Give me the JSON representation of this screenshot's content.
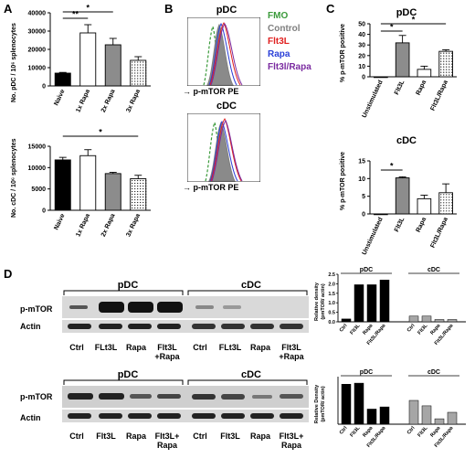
{
  "panels": {
    "A": "A",
    "B": "B",
    "C": "C",
    "D": "D"
  },
  "colors": {
    "fmo": "#3a9a3a",
    "control": "#7f7f7f",
    "flt3l": "#e0201f",
    "rapa": "#2a3fd8",
    "flt3l_rapa": "#7a2aa0"
  },
  "panel_a": {
    "top": {
      "ylabel": "No. pDC / 10⁶ splenocytes",
      "yticks": [
        "0",
        "10000",
        "20000",
        "30000",
        "40000"
      ],
      "categories": [
        "Naive",
        "1x Rapa",
        "2x Rapa",
        "3x Rapa"
      ],
      "sig1": "**",
      "sig2": "*"
    },
    "bottom": {
      "ylabel": "No. cDC / 10⁶ splenocytes",
      "yticks": [
        "0",
        "5000",
        "10000",
        "15000"
      ],
      "categories": [
        "Naive",
        "1x Rapa",
        "2x Rapa",
        "3x Rapa"
      ],
      "sig1": "*"
    }
  },
  "panel_b": {
    "top_title": "pDC",
    "bottom_title": "cDC",
    "xlabel": "p-mTOR PE",
    "legend": [
      "FMO",
      "Control",
      "Flt3L",
      "Rapa",
      "Flt3l/Rapa"
    ]
  },
  "panel_c": {
    "top": {
      "title": "pDC",
      "ylabel": "% p-mTOR positive",
      "yticks": [
        "0",
        "10",
        "20",
        "30",
        "40",
        "50"
      ],
      "categories": [
        "Unstimulated",
        "Flt3L",
        "Rapa",
        "Flt3L/Rapa"
      ],
      "sig1": "*",
      "sig2": "*"
    },
    "bottom": {
      "title": "cDC",
      "ylabel": "% p-mTOR positive",
      "yticks": [
        "0",
        "5",
        "10",
        "15"
      ],
      "categories": [
        "Unstimulated",
        "Flt3L",
        "Rapa",
        "Flt3L/Rapa"
      ],
      "sig1": "*"
    }
  },
  "panel_d": {
    "blot1": {
      "pdc": "pDC",
      "cdc": "cDC",
      "row1": "p-mTOR",
      "row2": "Actin",
      "lanes_pdc": [
        "Ctrl",
        "FLt3L",
        "Rapa",
        "Flt3L\n+Rapa"
      ],
      "lanes_cdc": [
        "Ctrl",
        "FLt3L",
        "Rapa",
        "Flt3L\n+Rapa"
      ]
    },
    "blot2": {
      "pdc": "pDC",
      "cdc": "cDC",
      "row1": "p-mTOR",
      "row2": "Actin",
      "lanes_pdc": [
        "Ctrl",
        "Flt3L",
        "Rapa",
        "Flt3L+\nRapa"
      ],
      "lanes_cdc": [
        "Ctrl",
        "Flt3L",
        "Rapa",
        "Flt3L+\nRapa"
      ]
    },
    "dens1": {
      "ylabel": "Relative density\n(pmTOR/ actin)",
      "yticks": [
        "0.0",
        "0.5",
        "1.0",
        "1.5",
        "2.0",
        "2.5"
      ],
      "pdc": "pDC",
      "cdc": "cDC",
      "categories": [
        "Ctrl",
        "Flt3L",
        "Rapa",
        "Flt3L/Rapa"
      ]
    },
    "dens2": {
      "ylabel": "Relative Density\n(pmTOR/ actin)",
      "yticks": [],
      "pdc": "pDC",
      "cdc": "cDC",
      "categories": [
        "Ctrl",
        "Flt3L",
        "Rapa",
        "Flt3L/Rapa"
      ]
    }
  },
  "chart_data": [
    {
      "type": "bar",
      "categories": [
        "Naive",
        "1x Rapa",
        "2x Rapa",
        "3x Rapa"
      ],
      "values": [
        7000,
        29000,
        22500,
        14000
      ],
      "errors": [
        400,
        4500,
        3500,
        2000
      ],
      "ylabel": "No. pDC / 10⁶ splenocytes",
      "ylim": [
        0,
        40000
      ]
    },
    {
      "type": "bar",
      "categories": [
        "Naive",
        "1x Rapa",
        "2x Rapa",
        "3x Rapa"
      ],
      "values": [
        11800,
        12800,
        8600,
        7400
      ],
      "errors": [
        600,
        1400,
        300,
        800
      ],
      "ylabel": "No. cDC / 10⁶ splenocytes",
      "ylim": [
        0,
        15000
      ]
    },
    {
      "type": "bar",
      "categories": [
        "Unstimulated",
        "Flt3L",
        "Rapa",
        "Flt3L/Rapa"
      ],
      "values": [
        0,
        32,
        7,
        24
      ],
      "errors": [
        0,
        7,
        3,
        1.5
      ],
      "ylabel": "% p-mTOR positive",
      "ylim": [
        0,
        50
      ]
    },
    {
      "type": "bar",
      "categories": [
        "Unstimulated",
        "Flt3L",
        "Rapa",
        "Flt3L/Rapa"
      ],
      "values": [
        0,
        10.2,
        4.3,
        6
      ],
      "errors": [
        0,
        0.3,
        1,
        2.5
      ],
      "ylabel": "% p-mTOR positive",
      "ylim": [
        0,
        15
      ]
    },
    {
      "type": "bar",
      "categories": [
        "Ctrl",
        "Flt3L",
        "Rapa",
        "Flt3L/Rapa",
        "Ctrl",
        "Flt3L",
        "Rapa",
        "Flt3L/Rapa"
      ],
      "values": [
        0.15,
        1.95,
        1.95,
        2.2,
        0.3,
        0.3,
        0.12,
        0.12
      ],
      "ylabel": "Relative density (pmTOR/ actin)",
      "ylim": [
        0,
        2.5
      ]
    },
    {
      "type": "bar",
      "categories": [
        "Ctrl",
        "Flt3L",
        "Rapa",
        "Flt3L/Rapa",
        "Ctrl",
        "Flt3L",
        "Rapa",
        "Flt3L/Rapa"
      ],
      "values": [
        1.85,
        1.9,
        0.7,
        0.8,
        1.1,
        0.85,
        0.25,
        0.55
      ],
      "ylabel": "Relative Density (pmTOR/ actin)",
      "ylim": [
        0,
        2.2
      ]
    }
  ]
}
